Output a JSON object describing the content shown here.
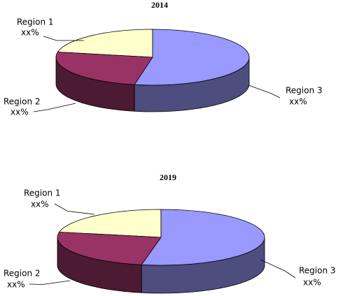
{
  "chart_data": [
    {
      "type": "pie",
      "title": "2014",
      "categories": [
        "Region 1",
        "Region 2",
        "Region 3"
      ],
      "values": [
        22,
        25,
        53
      ],
      "value_labels": [
        "xx%",
        "xx%",
        "xx%"
      ],
      "colors": [
        "#ffffcc",
        "#993366",
        "#9999ff"
      ]
    },
    {
      "type": "pie",
      "title": "2019",
      "categories": [
        "Region 1",
        "Region 2",
        "Region 3"
      ],
      "values": [
        22,
        25,
        53
      ],
      "value_labels": [
        "xx%",
        "xx%",
        "xx%"
      ],
      "colors": [
        "#ffffcc",
        "#993366",
        "#9999ff"
      ]
    }
  ]
}
